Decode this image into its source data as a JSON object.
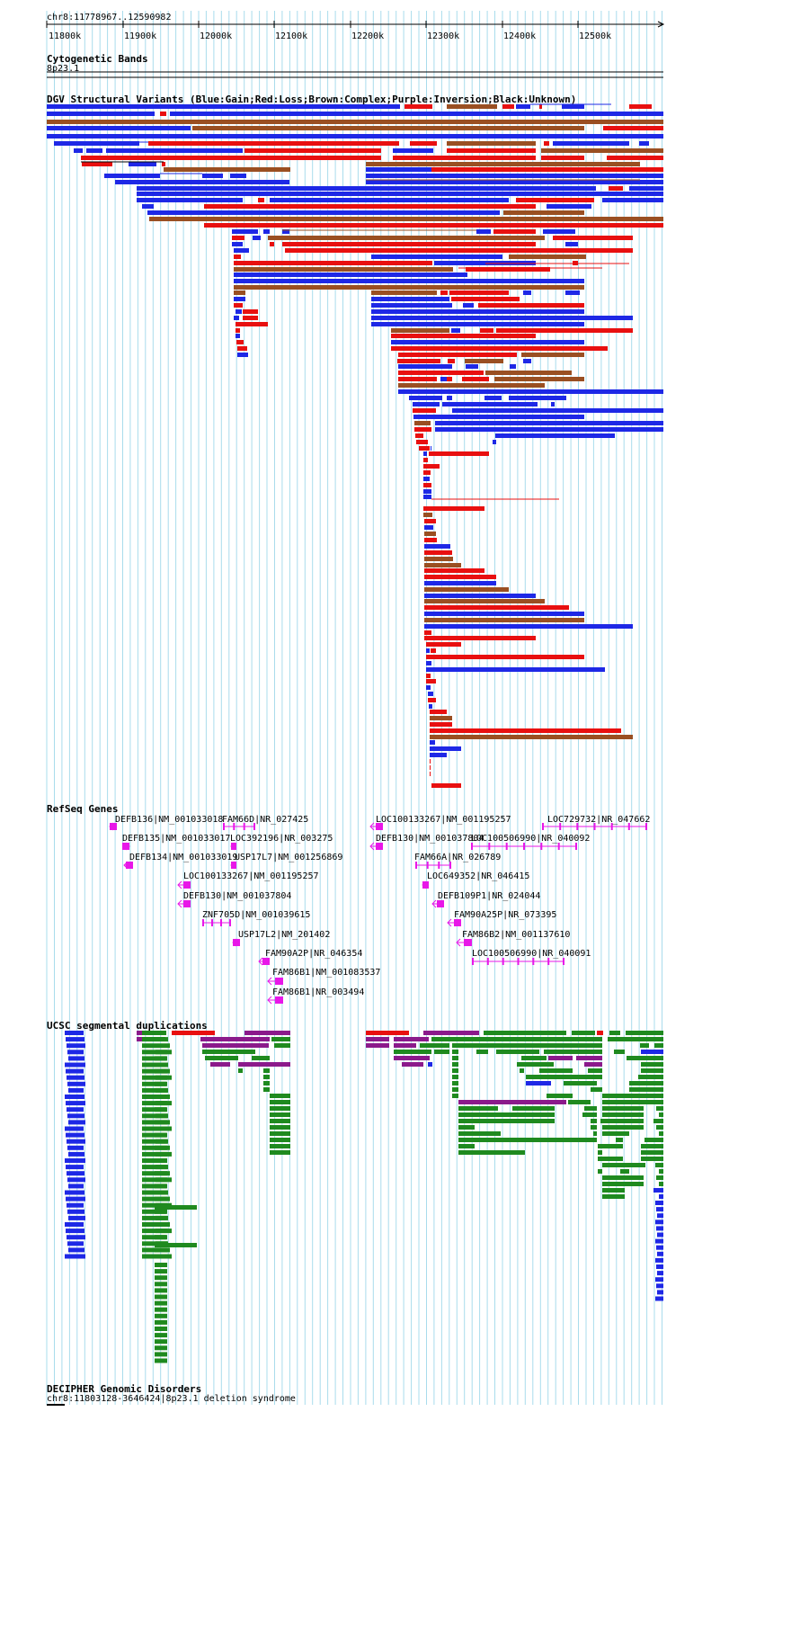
{
  "location": "chr8:11778967..12590982",
  "ruler": {
    "labels": [
      "11800k",
      "11900k",
      "12000k",
      "12100k",
      "12200k",
      "12300k",
      "12400k",
      "12500k"
    ],
    "start_kb": 11778.967,
    "end_kb": 12590.982
  },
  "colors": {
    "gain": "#e81010",
    "loss": "#e81010",
    "blue": "#1e28e6",
    "brown": "#9a4f22",
    "purple": "#8b1a8b",
    "gene": "#e817e8",
    "dup_green": "#1f8a1f",
    "dup_red": "#e81010",
    "dup_purple": "#8b1a8b",
    "dup_blue": "#1e28e6",
    "grid": "#a9dcec"
  },
  "tracks": {
    "cytoband": {
      "title": "Cytogenetic Bands",
      "band": "8p23.1"
    },
    "dgv": {
      "title": "DGV Structural Variants (Blue:Gain;Red:Loss;Brown:Complex;Purple:Inversion;Black:Unknown)"
    },
    "refseq": {
      "title": "RefSeq Genes",
      "genes": [
        {
          "label": "DEFB136|NM_001033018"
        },
        {
          "label": "FAM66D|NR_027425"
        },
        {
          "label": "LOC100133267|NM_001195257"
        },
        {
          "label": "LOC729732|NR_047662"
        },
        {
          "label": "DEFB135|NM_001033017"
        },
        {
          "label": "LOC392196|NR_003275"
        },
        {
          "label": "DEFB130|NM_001037804"
        },
        {
          "label": "LOC100506990|NR_040092"
        },
        {
          "label": "DEFB134|NM_001033019"
        },
        {
          "label": "USP17L7|NM_001256869"
        },
        {
          "label": "FAM66A|NR_026789"
        },
        {
          "label": "LOC100133267|NM_001195257"
        },
        {
          "label": "LOC649352|NR_046415"
        },
        {
          "label": "DEFB130|NM_001037804"
        },
        {
          "label": "DEFB109P1|NR_024044"
        },
        {
          "label": "ZNF705D|NM_001039615"
        },
        {
          "label": "FAM90A25P|NR_073395"
        },
        {
          "label": "USP17L2|NM_201402"
        },
        {
          "label": "FAM86B2|NM_001137610"
        },
        {
          "label": "FAM90A2P|NR_046354"
        },
        {
          "label": "LOC100506990|NR_040091"
        },
        {
          "label": "FAM86B1|NM_001083537"
        },
        {
          "label": "FAM86B1|NR_003494"
        }
      ]
    },
    "segdups": {
      "title": "UCSC segmental duplications"
    },
    "decipher": {
      "title": "DECIPHER Genomic Disorders",
      "entry": "chr8:11803128-3646424|8p23.1 deletion syndrome"
    }
  }
}
